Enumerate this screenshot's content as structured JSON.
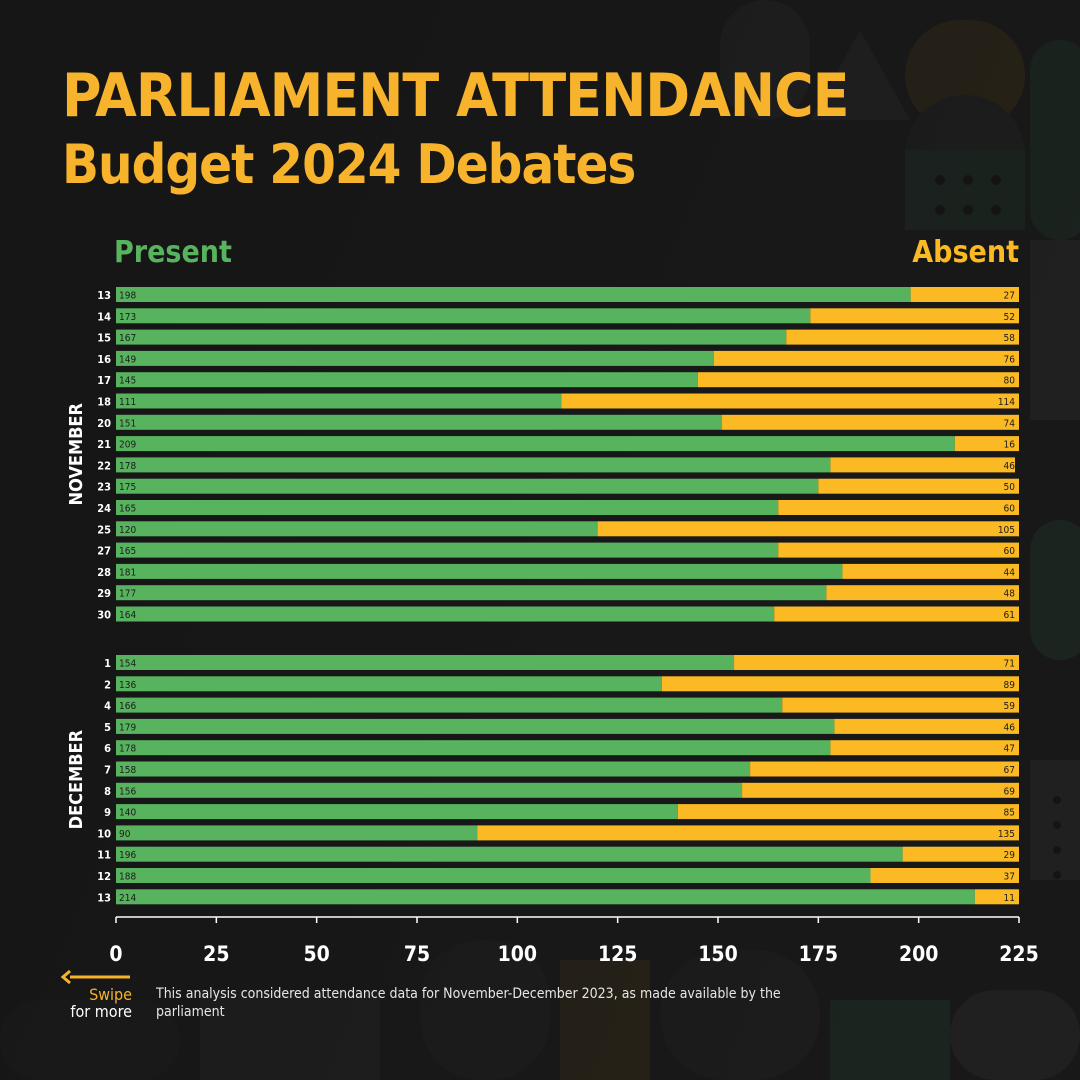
{
  "title": {
    "line1": "PARLIAMENT ATTENDANCE",
    "line2": "Budget 2024 Debates"
  },
  "legend": {
    "present": "Present",
    "absent": "Absent"
  },
  "colors": {
    "present": "#58b35f",
    "absent": "#fbb923",
    "title": "#f7b32b",
    "background": "#151515"
  },
  "chart_data": {
    "type": "bar",
    "orientation": "horizontal",
    "stacked": true,
    "xlim": [
      0,
      225
    ],
    "x_ticks": [
      "0",
      "25",
      "50",
      "75",
      "100",
      "125",
      "150",
      "175",
      "200",
      "225"
    ],
    "groups": [
      {
        "name": "NOVEMBER",
        "categories": [
          "13",
          "14",
          "15",
          "16",
          "17",
          "18",
          "20",
          "21",
          "22",
          "23",
          "24",
          "25",
          "27",
          "28",
          "29",
          "30"
        ],
        "present": [
          198,
          173,
          167,
          149,
          145,
          111,
          151,
          209,
          178,
          175,
          165,
          120,
          165,
          181,
          177,
          164
        ],
        "absent": [
          27,
          52,
          58,
          76,
          80,
          114,
          74,
          16,
          46,
          50,
          60,
          105,
          60,
          44,
          48,
          61
        ]
      },
      {
        "name": "DECEMBER",
        "categories": [
          "1",
          "2",
          "4",
          "5",
          "6",
          "7",
          "8",
          "9",
          "10",
          "11",
          "12",
          "13"
        ],
        "present": [
          154,
          136,
          166,
          179,
          178,
          158,
          156,
          140,
          90,
          196,
          188,
          214
        ],
        "absent": [
          71,
          89,
          59,
          46,
          47,
          67,
          69,
          85,
          135,
          29,
          37,
          11
        ]
      }
    ],
    "series": [
      {
        "name": "Present",
        "color": "#58b35f"
      },
      {
        "name": "Absent",
        "color": "#fbb923"
      }
    ],
    "legend": "top"
  },
  "swipe": {
    "line1": "Swipe",
    "line2": "for more",
    "icon": "left-arrow-icon"
  },
  "footnote": "This analysis considered attendance data for November-December 2023, as made available by the parliament"
}
